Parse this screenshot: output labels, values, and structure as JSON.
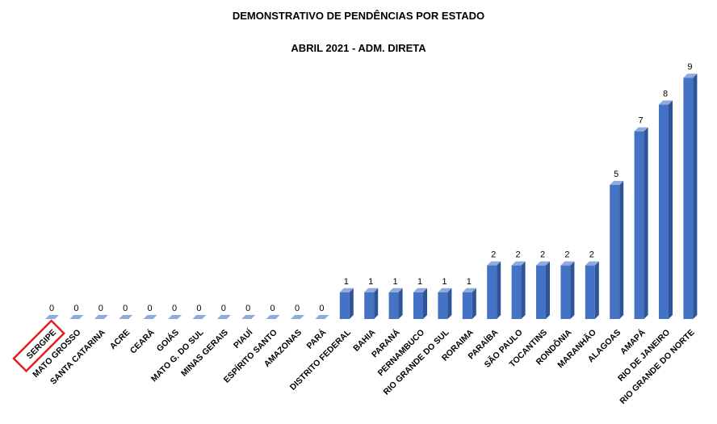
{
  "chart_data": {
    "type": "bar",
    "title": "DEMONSTRATIVO DE PENDÊNCIAS POR ESTADO",
    "subtitle": "ABRIL 2021 - ADM. DIRETA",
    "categories": [
      "SERGIPE",
      "MATO GROSSO",
      "SANTA CATARINA",
      "ACRE",
      "CEARÁ",
      "GOIÁS",
      "MATO G. DO SUL",
      "MINAS GERAIS",
      "PIAUÍ",
      "ESPÍRITO  SANTO",
      "AMAZONAS",
      "PARÁ",
      "DISTRITO  FEDERAL",
      "BAHIA",
      "PARANÁ",
      "PERNAMBUCO",
      "RIO GRANDE DO SUL",
      "RORAIMA",
      "PARAÍBA",
      "SÃO PAULO",
      "TOCANTINS",
      "RONDÔNIA",
      "MARANHÃO",
      "ALAGOAS",
      "AMAPÁ",
      "RIO DE JANEIRO",
      "RIO GRANDE DO NORTE"
    ],
    "values": [
      0,
      0,
      0,
      0,
      0,
      0,
      0,
      0,
      0,
      0,
      0,
      0,
      1,
      1,
      1,
      1,
      1,
      1,
      2,
      2,
      2,
      2,
      2,
      5,
      7,
      8,
      9
    ],
    "ylim": [
      0,
      9
    ],
    "grid": false,
    "legend": "none",
    "highlighted_category": "SERGIPE",
    "colors": {
      "bar": "#4472C4",
      "bar_side": "#2F5597",
      "bar_top": "#8FAADC",
      "highlight": "#E02020"
    }
  }
}
